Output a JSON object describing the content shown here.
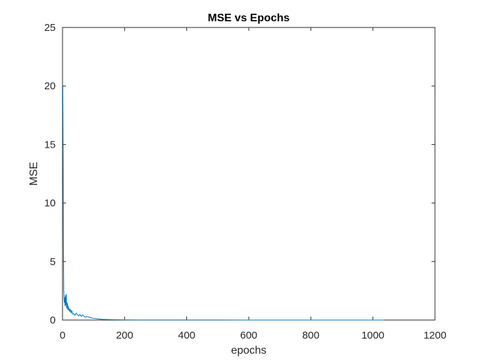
{
  "chart_data": {
    "type": "line",
    "title": "MSE vs Epochs",
    "xlabel": "epochs",
    "ylabel": "MSE",
    "xlim": [
      0,
      1200
    ],
    "ylim": [
      0,
      25
    ],
    "xticks": [
      0,
      200,
      400,
      600,
      800,
      1000,
      1200
    ],
    "yticks": [
      0,
      5,
      10,
      15,
      20,
      25
    ],
    "xtick_labels": [
      "0",
      "200",
      "400",
      "600",
      "800",
      "1000",
      "1200"
    ],
    "ytick_labels": [
      "0",
      "5",
      "10",
      "15",
      "20",
      "25"
    ],
    "grid": false,
    "line_color": "#0072BD",
    "series": [
      {
        "x": [
          1,
          2,
          3,
          4,
          5,
          6,
          7,
          8,
          9,
          10,
          11,
          12,
          13,
          14,
          15,
          16,
          17,
          18,
          20,
          22,
          24,
          26,
          28,
          30,
          33,
          36,
          40,
          44,
          48,
          52,
          56,
          60,
          65,
          70,
          75,
          80,
          90,
          100,
          110,
          120,
          130,
          140,
          150,
          160,
          180,
          200,
          250,
          300,
          400,
          500,
          600,
          700,
          800,
          900,
          1000,
          1035
        ],
        "y": [
          20,
          14,
          6,
          2.5,
          1.8,
          1.5,
          1.9,
          1.2,
          2.1,
          1.3,
          1.7,
          2.2,
          1.0,
          1.5,
          1.1,
          1.4,
          0.9,
          1.2,
          0.8,
          1.0,
          0.7,
          0.9,
          0.6,
          0.8,
          0.5,
          0.55,
          0.4,
          0.6,
          0.45,
          0.35,
          0.5,
          0.3,
          0.45,
          0.3,
          0.25,
          0.3,
          0.2,
          0.15,
          0.12,
          0.08,
          0.06,
          0.05,
          0.04,
          0.03,
          0.02,
          0.015,
          0.01,
          0.008,
          0.005,
          0.004,
          0.003,
          0.003,
          0.002,
          0.002,
          0.002,
          0.002
        ]
      }
    ]
  }
}
